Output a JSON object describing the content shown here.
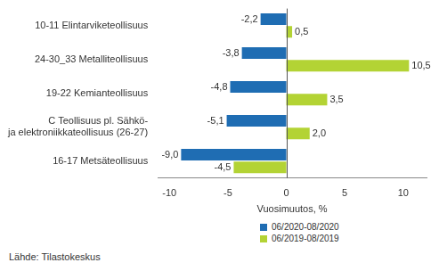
{
  "chart_data": {
    "type": "bar",
    "orientation": "horizontal",
    "categories": [
      "10-11 Elintarviketeollisuus",
      "24-30_33 Metalliteollisuus",
      "19-22 Kemianteollisuus",
      [
        "C Teollisuus pl. Sähkö-",
        "ja elektroniikkateollisuus (26-27)"
      ],
      "16-17 Metsäteollisuus"
    ],
    "series": [
      {
        "name": "06/2020-08/2020",
        "color": "#1f6db3",
        "values": [
          -2.2,
          -3.8,
          -4.8,
          -5.1,
          -9.0
        ],
        "value_labels": [
          "-2,2",
          "-3,8",
          "-4,8",
          "-5,1",
          "-9,0"
        ]
      },
      {
        "name": "06/2019-08/2019",
        "color": "#b3d334",
        "values": [
          0.5,
          10.5,
          3.5,
          2.0,
          -4.5
        ],
        "value_labels": [
          "0,5",
          "10,5",
          "3,5",
          "2,0",
          "-4,5"
        ]
      }
    ],
    "x_label": "Vuosimuutos, %",
    "xlim": [
      -11,
      12
    ],
    "xticks": [
      -10,
      -5,
      0,
      5,
      10
    ],
    "grid": false,
    "data_labels": true,
    "legend": "bottom",
    "source": "Lähde: Tilastokeskus"
  }
}
